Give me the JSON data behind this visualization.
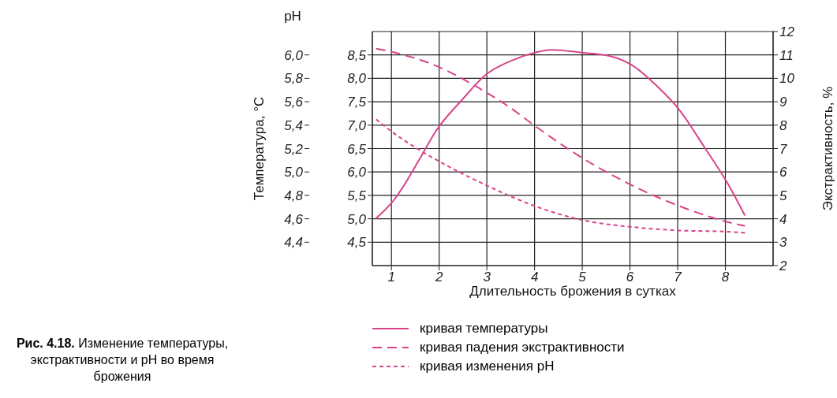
{
  "chart_data": {
    "type": "line",
    "xlabel": "Длительность брожения в сутках",
    "ylabel": "Температура, °С",
    "y2label": "Экстрактивность, %",
    "y3label": "pH",
    "annotations": [
      "Рис. 4.18.",
      "Изменение температуры, экстрактивности и pH во время брожения"
    ],
    "xlim": [
      0.6,
      9.0
    ],
    "xticks": [
      1,
      2,
      3,
      4,
      5,
      6,
      7,
      8
    ],
    "ylim": [
      4.0,
      9.0
    ],
    "yticks": [
      {
        "value": 4.5,
        "label": "4,5"
      },
      {
        "value": 5.0,
        "label": "5,0"
      },
      {
        "value": 5.5,
        "label": "5,5"
      },
      {
        "value": 6.0,
        "label": "6,0"
      },
      {
        "value": 6.5,
        "label": "6,5"
      },
      {
        "value": 7.0,
        "label": "7,0"
      },
      {
        "value": 7.5,
        "label": "7,5"
      },
      {
        "value": 8.0,
        "label": "8,0"
      },
      {
        "value": 8.5,
        "label": "8,5"
      }
    ],
    "y2lim": [
      2,
      12
    ],
    "y2ticks": [
      2,
      3,
      4,
      5,
      6,
      7,
      8,
      9,
      10,
      11,
      12
    ],
    "y3lim": [
      4.2,
      6.2
    ],
    "y3ticks": [
      {
        "value": 4.4,
        "label": "4,4"
      },
      {
        "value": 4.6,
        "label": "4,6"
      },
      {
        "value": 4.8,
        "label": "4,8"
      },
      {
        "value": 5.0,
        "label": "5,0"
      },
      {
        "value": 5.2,
        "label": "5,2"
      },
      {
        "value": 5.4,
        "label": "5,4"
      },
      {
        "value": 5.6,
        "label": "5,6"
      },
      {
        "value": 5.8,
        "label": "5,8"
      },
      {
        "value": 6.0,
        "label": "6,0"
      }
    ],
    "grid": true,
    "legend": "bottom",
    "marker": "none",
    "series": [
      {
        "name": "кривая температуры",
        "color": "#d9448a",
        "line_style": "solid",
        "x": [
          0.67,
          1.06,
          1.61,
          1.93,
          2.48,
          2.97,
          3.52,
          4.01,
          4.34,
          4.99,
          5.6,
          6.06,
          6.58,
          7.04,
          7.56,
          8.05,
          8.41
        ],
        "values": [
          5.0,
          5.41,
          6.31,
          6.87,
          7.54,
          8.07,
          8.38,
          8.55,
          8.61,
          8.55,
          8.47,
          8.27,
          7.82,
          7.32,
          6.53,
          5.75,
          5.07
        ]
      },
      {
        "name": "кривая падения экстрактивности",
        "color": "#d9448a",
        "line_style": "dashed",
        "axis": "y2",
        "x": [
          0.68,
          1.17,
          1.93,
          2.59,
          2.97,
          3.41,
          4.0,
          4.99,
          6.04,
          7.04,
          8.05,
          8.41
        ],
        "values": [
          11.27,
          11.05,
          10.54,
          9.87,
          9.42,
          8.86,
          7.98,
          6.61,
          5.43,
          4.54,
          3.86,
          3.69
        ]
      },
      {
        "name": "кривая изменения pH",
        "color": "#d9448a",
        "line_style": "dotted",
        "axis": "y3",
        "x": [
          0.68,
          0.99,
          1.66,
          1.96,
          2.97,
          4.0,
          4.99,
          6.04,
          7.04,
          8.05,
          8.41
        ],
        "values": [
          5.45,
          5.35,
          5.17,
          5.1,
          4.89,
          4.71,
          4.59,
          4.53,
          4.5,
          4.49,
          4.48
        ]
      }
    ]
  }
}
